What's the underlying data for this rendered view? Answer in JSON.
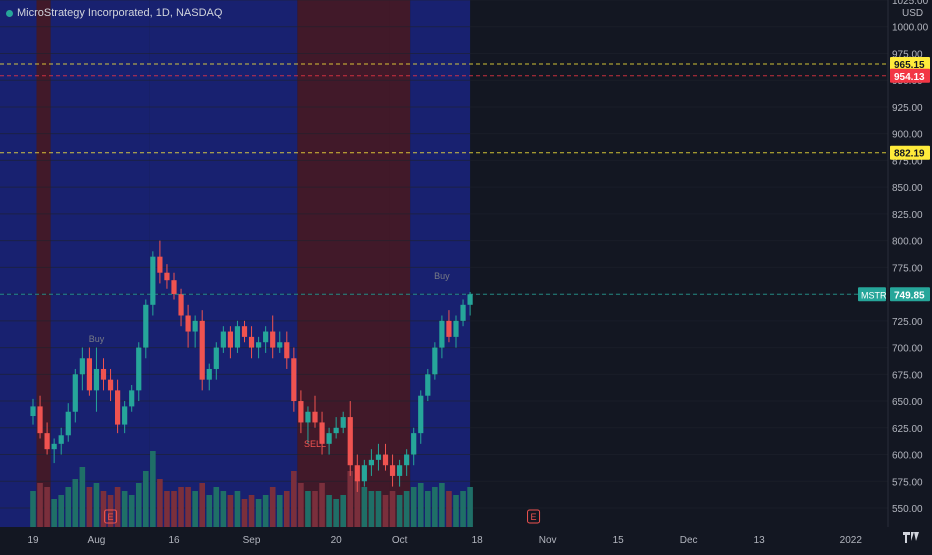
{
  "chart_data": {
    "type": "candlestick",
    "title": "MicroStrategy Incorporated, 1D, NASDAQ",
    "symbol": "MSTR",
    "currency": "USD",
    "last_price": "749.85",
    "ylim": [
      545,
      1025
    ],
    "y_ticks": [
      {
        "label": "1025.00",
        "value": 1025
      },
      {
        "label": "1000.00",
        "value": 1000
      },
      {
        "label": "975.00",
        "value": 975
      },
      {
        "label": "950.00",
        "value": 950
      },
      {
        "label": "925.00",
        "value": 925
      },
      {
        "label": "900.00",
        "value": 900
      },
      {
        "label": "875.00",
        "value": 875
      },
      {
        "label": "850.00",
        "value": 850
      },
      {
        "label": "825.00",
        "value": 825
      },
      {
        "label": "800.00",
        "value": 800
      },
      {
        "label": "775.00",
        "value": 775
      },
      {
        "label": "750.00",
        "value": 750
      },
      {
        "label": "725.00",
        "value": 725
      },
      {
        "label": "700.00",
        "value": 700
      },
      {
        "label": "675.00",
        "value": 675
      },
      {
        "label": "650.00",
        "value": 650
      },
      {
        "label": "625.00",
        "value": 625
      },
      {
        "label": "600.00",
        "value": 600
      },
      {
        "label": "575.00",
        "value": 575
      },
      {
        "label": "550.00",
        "value": 550
      }
    ],
    "price_labels": [
      {
        "label": "965.15",
        "value": 965.15,
        "color": "#ffeb3b",
        "text_color": "#131722"
      },
      {
        "label": "954.13",
        "value": 954.13,
        "color": "#f23645",
        "text_color": "#ffffff"
      },
      {
        "label": "882.19",
        "value": 882.19,
        "color": "#ffeb3b",
        "text_color": "#131722"
      },
      {
        "label": "749.85",
        "value": 749.85,
        "color": "#26a69a",
        "text_color": "#ffffff"
      }
    ],
    "x_ticks": [
      {
        "label": "19",
        "bar": 0
      },
      {
        "label": "Aug",
        "bar": 9
      },
      {
        "label": "16",
        "bar": 20
      },
      {
        "label": "Sep",
        "bar": 31
      },
      {
        "label": "20",
        "bar": 43
      },
      {
        "label": "Oct",
        "bar": 52
      },
      {
        "label": "18",
        "bar": 63
      },
      {
        "label": "Nov",
        "bar": 73
      },
      {
        "label": "15",
        "bar": 83
      },
      {
        "label": "Dec",
        "bar": 93
      },
      {
        "label": "13",
        "bar": 103
      },
      {
        "label": "2022",
        "bar": 116
      }
    ],
    "annotations": [
      {
        "text": "Buy",
        "bar": 9,
        "value": 705
      },
      {
        "text": "SELL",
        "bar": 40,
        "value": 607
      },
      {
        "text": "Buy",
        "bar": 58,
        "value": 764
      },
      {
        "text": "E",
        "bar": 11,
        "value": 0
      },
      {
        "text": "E",
        "bar": 71,
        "value": 0
      }
    ],
    "candles": [
      [
        636,
        652,
        628,
        645
      ],
      [
        645,
        655,
        615,
        620
      ],
      [
        620,
        630,
        600,
        605
      ],
      [
        605,
        615,
        592,
        610
      ],
      [
        610,
        625,
        600,
        618
      ],
      [
        618,
        648,
        612,
        640
      ],
      [
        640,
        680,
        630,
        675
      ],
      [
        675,
        700,
        660,
        690
      ],
      [
        690,
        700,
        655,
        660
      ],
      [
        660,
        700,
        640,
        680
      ],
      [
        680,
        690,
        660,
        670
      ],
      [
        670,
        680,
        650,
        660
      ],
      [
        660,
        670,
        620,
        628
      ],
      [
        628,
        650,
        620,
        645
      ],
      [
        645,
        665,
        640,
        660
      ],
      [
        660,
        705,
        650,
        700
      ],
      [
        700,
        745,
        690,
        740
      ],
      [
        740,
        790,
        730,
        785
      ],
      [
        785,
        800,
        760,
        770
      ],
      [
        770,
        778,
        755,
        763
      ],
      [
        763,
        770,
        745,
        750
      ],
      [
        750,
        755,
        720,
        730
      ],
      [
        730,
        740,
        700,
        715
      ],
      [
        715,
        730,
        700,
        725
      ],
      [
        725,
        735,
        660,
        670
      ],
      [
        670,
        685,
        660,
        680
      ],
      [
        680,
        705,
        670,
        700
      ],
      [
        700,
        720,
        695,
        715
      ],
      [
        715,
        720,
        690,
        700
      ],
      [
        700,
        725,
        695,
        720
      ],
      [
        720,
        725,
        705,
        710
      ],
      [
        710,
        720,
        690,
        700
      ],
      [
        700,
        710,
        690,
        705
      ],
      [
        705,
        720,
        695,
        715
      ],
      [
        715,
        730,
        690,
        700
      ],
      [
        700,
        715,
        695,
        705
      ],
      [
        705,
        715,
        680,
        690
      ],
      [
        690,
        700,
        640,
        650
      ],
      [
        650,
        660,
        620,
        630
      ],
      [
        630,
        645,
        610,
        640
      ],
      [
        640,
        655,
        625,
        630
      ],
      [
        630,
        640,
        600,
        610
      ],
      [
        610,
        625,
        600,
        620
      ],
      [
        620,
        635,
        615,
        625
      ],
      [
        625,
        640,
        620,
        635
      ],
      [
        635,
        650,
        580,
        590
      ],
      [
        590,
        600,
        565,
        575
      ],
      [
        575,
        595,
        570,
        590
      ],
      [
        590,
        605,
        580,
        595
      ],
      [
        595,
        610,
        585,
        600
      ],
      [
        600,
        610,
        585,
        590
      ],
      [
        590,
        600,
        570,
        580
      ],
      [
        580,
        595,
        570,
        590
      ],
      [
        590,
        605,
        580,
        600
      ],
      [
        600,
        625,
        590,
        620
      ],
      [
        620,
        660,
        610,
        655
      ],
      [
        655,
        680,
        650,
        675
      ],
      [
        675,
        705,
        670,
        700
      ],
      [
        700,
        730,
        690,
        725
      ],
      [
        725,
        735,
        705,
        710
      ],
      [
        710,
        730,
        700,
        725
      ],
      [
        725,
        745,
        720,
        740
      ],
      [
        740,
        752,
        730,
        749.85
      ]
    ],
    "volume": [
      0.45,
      0.55,
      0.5,
      0.35,
      0.4,
      0.5,
      0.6,
      0.75,
      0.5,
      0.55,
      0.45,
      0.4,
      0.5,
      0.45,
      0.4,
      0.55,
      0.7,
      0.95,
      0.6,
      0.45,
      0.45,
      0.5,
      0.5,
      0.45,
      0.55,
      0.4,
      0.5,
      0.45,
      0.4,
      0.45,
      0.35,
      0.4,
      0.35,
      0.4,
      0.5,
      0.4,
      0.45,
      0.7,
      0.55,
      0.45,
      0.45,
      0.55,
      0.4,
      0.35,
      0.4,
      0.7,
      0.6,
      0.5,
      0.45,
      0.45,
      0.4,
      0.45,
      0.4,
      0.45,
      0.5,
      0.55,
      0.45,
      0.5,
      0.55,
      0.45,
      0.4,
      0.45,
      0.5
    ],
    "shading": [
      {
        "from": 0,
        "to": 1,
        "color": "#1a237e"
      },
      {
        "from": 1,
        "to": 3,
        "color": "#4a1a2a"
      },
      {
        "from": 3,
        "to": 17,
        "color": "#1a237e"
      },
      {
        "from": 17,
        "to": 38,
        "color": "#1a237e"
      },
      {
        "from": 38,
        "to": 51,
        "color": "#4a1a2a"
      },
      {
        "from": 51,
        "to": 54,
        "color": "#4a1a2a"
      },
      {
        "from": 54,
        "to": 62.5,
        "color": "#1a237e"
      }
    ],
    "colors": {
      "up": "#26a69a",
      "down": "#ef5350",
      "up_vol": "#1f6f67",
      "down_vol": "#7a2f3c",
      "axis_text": "#b2b5be",
      "grid": "#1e222d",
      "bg": "#131722"
    }
  }
}
